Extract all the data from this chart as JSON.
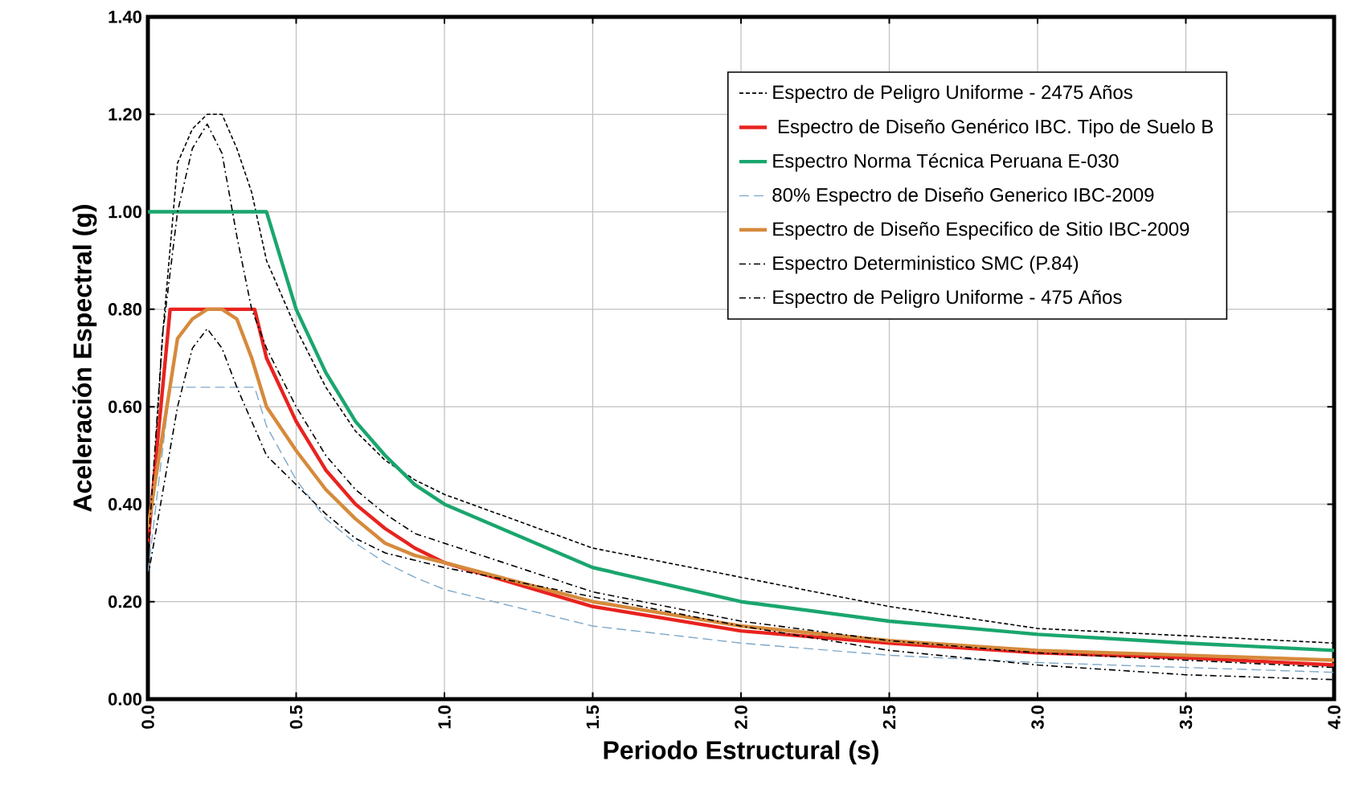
{
  "chart_data": {
    "type": "line",
    "xlabel": "Periodo Estructural (s)",
    "ylabel": "Aceleración Espectral  (g)",
    "xlim": [
      0,
      4
    ],
    "ylim": [
      0,
      1.4
    ],
    "xticks": [
      {
        "value": 0,
        "label": "0.0"
      },
      {
        "value": 0.5,
        "label": "0.5"
      },
      {
        "value": 1,
        "label": "1.0"
      },
      {
        "value": 1.5,
        "label": "1.5"
      },
      {
        "value": 2,
        "label": "2.0"
      },
      {
        "value": 2.5,
        "label": "2.5"
      },
      {
        "value": 3,
        "label": "3.0"
      },
      {
        "value": 3.5,
        "label": "3.5"
      },
      {
        "value": 4,
        "label": "4.0"
      }
    ],
    "yticks": [
      {
        "value": 0,
        "label": "0.00"
      },
      {
        "value": 0.2,
        "label": "0.20"
      },
      {
        "value": 0.4,
        "label": "0.40"
      },
      {
        "value": 0.6,
        "label": "0.60"
      },
      {
        "value": 0.8,
        "label": "0.80"
      },
      {
        "value": 1.0,
        "label": "1.00"
      },
      {
        "value": 1.2,
        "label": "1.20"
      },
      {
        "value": 1.4,
        "label": "1.40"
      }
    ],
    "grid": true,
    "legend": "top right",
    "marker": "none",
    "series": [
      {
        "name": "Espectro de Peligro Uniforme - 2475 Años",
        "color": "#000000",
        "line_style": "dotted",
        "x": [
          0,
          0.05,
          0.1,
          0.15,
          0.2,
          0.25,
          0.3,
          0.35,
          0.4,
          0.5,
          0.6,
          0.7,
          0.8,
          0.9,
          1.0,
          1.5,
          2.0,
          2.5,
          3.0,
          3.5,
          4.0
        ],
        "values": [
          0.27,
          0.75,
          1.1,
          1.17,
          1.2,
          1.2,
          1.13,
          1.04,
          0.9,
          0.76,
          0.64,
          0.55,
          0.49,
          0.45,
          0.42,
          0.31,
          0.25,
          0.19,
          0.145,
          0.13,
          0.115
        ]
      },
      {
        "name": " Espectro de Diseño Genérico IBC. Tipo de Suelo B",
        "color": "#e8231f",
        "line_style": "solid",
        "x": [
          0,
          0.075,
          0.36,
          0.4,
          0.5,
          0.6,
          0.7,
          0.8,
          0.9,
          1.0,
          1.5,
          2.0,
          2.5,
          3.0,
          3.5,
          4.0
        ],
        "values": [
          0.32,
          0.8,
          0.8,
          0.7,
          0.57,
          0.47,
          0.4,
          0.35,
          0.31,
          0.28,
          0.19,
          0.14,
          0.115,
          0.095,
          0.085,
          0.07
        ]
      },
      {
        "name": "Espectro Norma Técnica Peruana E-030",
        "color": "#1aa66e",
        "line_style": "solid",
        "x": [
          0,
          0.4,
          0.5,
          0.6,
          0.7,
          0.8,
          0.9,
          1.0,
          1.5,
          2.0,
          2.5,
          3.0,
          3.5,
          4.0
        ],
        "values": [
          1.0,
          1.0,
          0.8,
          0.67,
          0.57,
          0.5,
          0.44,
          0.4,
          0.27,
          0.2,
          0.16,
          0.133,
          0.115,
          0.1
        ]
      },
      {
        "name": "80% Espectro de Diseño Generico IBC-2009",
        "color": "#7fa8c8",
        "line_style": "dashed",
        "x": [
          0,
          0.075,
          0.36,
          0.4,
          0.5,
          0.6,
          0.7,
          0.8,
          0.9,
          1.0,
          1.5,
          2.0,
          2.5,
          3.0,
          3.5,
          4.0
        ],
        "values": [
          0.26,
          0.64,
          0.64,
          0.56,
          0.45,
          0.37,
          0.32,
          0.28,
          0.25,
          0.225,
          0.15,
          0.115,
          0.09,
          0.075,
          0.065,
          0.055
        ]
      },
      {
        "name": "Espectro de Diseño Especifico de Sitio IBC-2009",
        "color": "#d68a3c",
        "line_style": "solid",
        "x": [
          0,
          0.1,
          0.15,
          0.2,
          0.25,
          0.3,
          0.35,
          0.4,
          0.5,
          0.6,
          0.7,
          0.8,
          0.9,
          1.0,
          1.5,
          2.0,
          2.5,
          3.0,
          3.5,
          4.0
        ],
        "values": [
          0.35,
          0.74,
          0.78,
          0.8,
          0.8,
          0.78,
          0.7,
          0.6,
          0.51,
          0.43,
          0.37,
          0.32,
          0.295,
          0.28,
          0.2,
          0.15,
          0.12,
          0.1,
          0.09,
          0.08
        ]
      },
      {
        "name": "Espectro Deterministico SMC (P.84)",
        "color": "#000000",
        "line_style": "dashdot",
        "x": [
          0,
          0.05,
          0.1,
          0.15,
          0.2,
          0.25,
          0.3,
          0.35,
          0.4,
          0.5,
          0.6,
          0.7,
          0.8,
          0.9,
          1.0,
          1.5,
          2.0,
          2.5,
          3.0,
          3.5,
          4.0
        ],
        "values": [
          0.3,
          0.75,
          1.0,
          1.13,
          1.18,
          1.12,
          0.95,
          0.8,
          0.72,
          0.6,
          0.5,
          0.43,
          0.38,
          0.34,
          0.32,
          0.22,
          0.16,
          0.12,
          0.095,
          0.08,
          0.065
        ]
      },
      {
        "name": "Espectro de Peligro Uniforme - 475 Años",
        "color": "#000000",
        "line_style": "dashdot",
        "x": [
          0,
          0.1,
          0.15,
          0.2,
          0.25,
          0.3,
          0.35,
          0.4,
          0.5,
          0.6,
          0.7,
          0.8,
          1.0,
          1.5,
          2.0,
          2.5,
          3.0,
          3.5,
          4.0
        ],
        "values": [
          0.25,
          0.6,
          0.72,
          0.76,
          0.72,
          0.64,
          0.57,
          0.5,
          0.44,
          0.38,
          0.33,
          0.3,
          0.27,
          0.21,
          0.15,
          0.1,
          0.07,
          0.05,
          0.04
        ]
      }
    ]
  }
}
